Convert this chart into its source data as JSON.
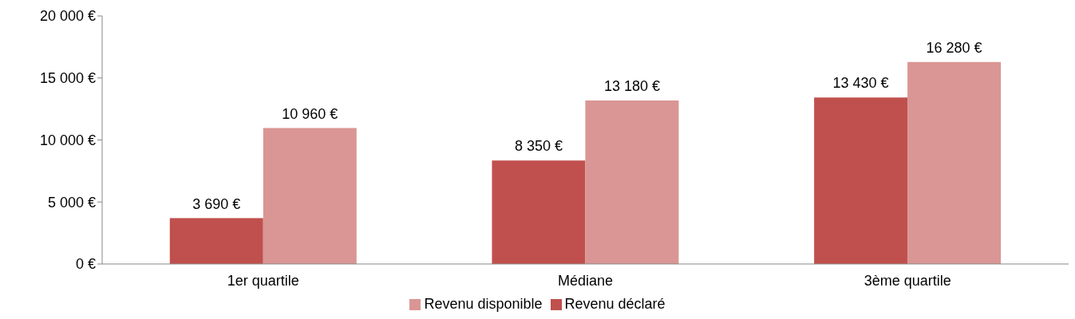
{
  "chart_data": {
    "type": "bar",
    "categories": [
      "1er quartile",
      "Médiane",
      "3ème quartile"
    ],
    "series": [
      {
        "name": "Revenu déclaré",
        "color": "#c0504d",
        "values": [
          3690,
          8350,
          13430
        ],
        "value_labels": [
          "3 690 €",
          "8 350 €",
          "13 430 €"
        ]
      },
      {
        "name": "Revenu disponible",
        "color": "#d99694",
        "values": [
          10960,
          13180,
          16280
        ],
        "value_labels": [
          "10 960 €",
          "13 180 €",
          "16 280 €"
        ]
      }
    ],
    "ylim": [
      0,
      20000
    ],
    "yticks": [
      {
        "value": 0,
        "label": "0 €"
      },
      {
        "value": 5000,
        "label": "5 000 €"
      },
      {
        "value": 10000,
        "label": "10 000 €"
      },
      {
        "value": 15000,
        "label": "15 000 €"
      },
      {
        "value": 20000,
        "label": "20 000 €"
      }
    ],
    "grid": false,
    "legend": "bottom"
  }
}
